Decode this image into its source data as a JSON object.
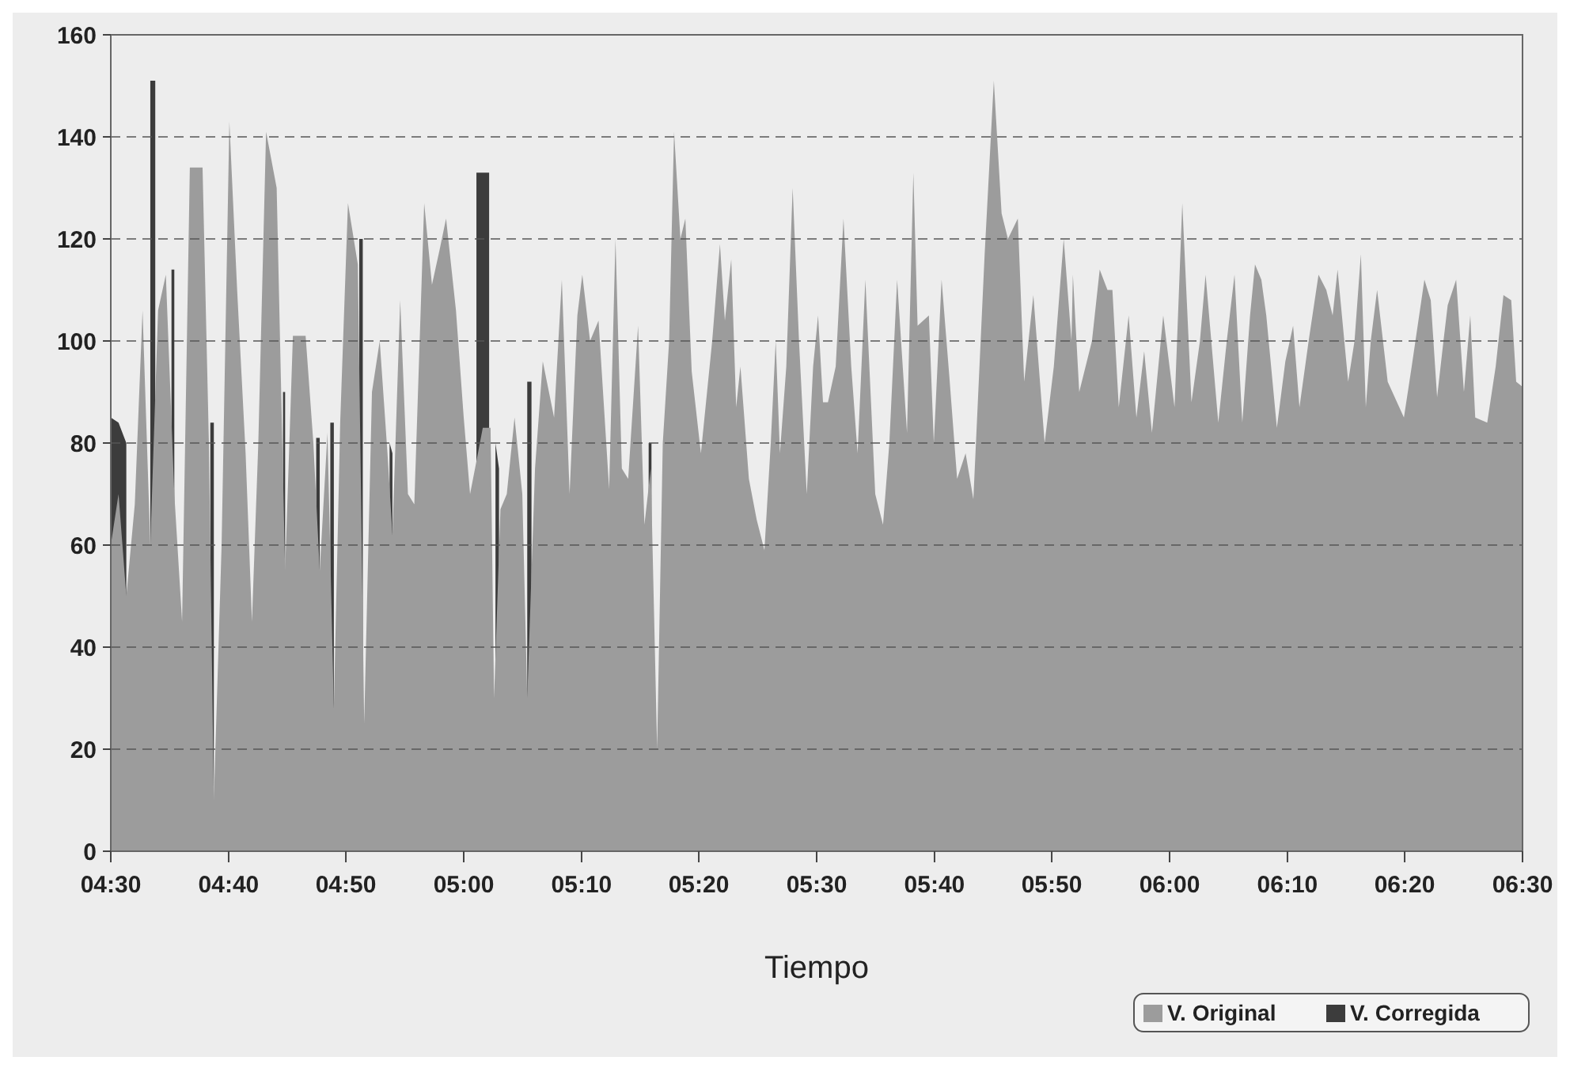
{
  "chart_data": {
    "type": "area",
    "xlabel": "Tiempo",
    "xlim": [
      4.5,
      6.5
    ],
    "ylim": [
      0,
      160
    ],
    "yticks": [
      0,
      20,
      40,
      60,
      80,
      100,
      120,
      140,
      160
    ],
    "xticks": [
      {
        "value": 4.5,
        "label": "04:30"
      },
      {
        "value": 4.667,
        "label": "04:40"
      },
      {
        "value": 4.833,
        "label": "04:50"
      },
      {
        "value": 5,
        "label": "05:00"
      },
      {
        "value": 5.167,
        "label": "05:10"
      },
      {
        "value": 5.333,
        "label": "05:20"
      },
      {
        "value": 5.5,
        "label": "05:30"
      },
      {
        "value": 5.667,
        "label": "05:40"
      },
      {
        "value": 5.833,
        "label": "05:50"
      },
      {
        "value": 6,
        "label": "06:00"
      },
      {
        "value": 6.167,
        "label": "06:10"
      },
      {
        "value": 6.333,
        "label": "06:20"
      },
      {
        "value": 6.5,
        "label": "06:30"
      }
    ],
    "grid": "y",
    "legend": "bottom right",
    "marker": "none",
    "series": [
      {
        "name": "V. Corregida",
        "color": "#3c3c3c",
        "x": [
          4.5,
          4.511,
          4.522,
          4.53,
          4.556,
          4.563,
          4.57,
          4.586,
          4.59,
          4.6,
          4.641,
          4.646,
          4.7,
          4.744,
          4.747,
          4.77,
          4.791,
          4.796,
          4.8,
          4.811,
          4.816,
          4.83,
          4.852,
          4.857,
          4.87,
          4.895,
          4.899,
          4.95,
          5.018,
          5.036,
          5.04,
          5.045,
          5.05,
          5.07,
          5.09,
          5.096,
          5.2,
          5.262,
          5.266
        ],
        "values": [
          85,
          84,
          80,
          null,
          151,
          151,
          null,
          114,
          114,
          null,
          84,
          84,
          null,
          90,
          90,
          null,
          81,
          81,
          null,
          84,
          84,
          null,
          120,
          120,
          null,
          80,
          78,
          null,
          133,
          133,
          null,
          80,
          75,
          null,
          92,
          92,
          null,
          80,
          80
        ]
      },
      {
        "name": "V. Original",
        "color": "#9c9c9c",
        "x": [
          4.5,
          4.511,
          4.522,
          4.534,
          4.545,
          4.556,
          4.567,
          4.578,
          4.59,
          4.601,
          4.612,
          4.63,
          4.639,
          4.646,
          4.657,
          4.668,
          4.679,
          4.691,
          4.7,
          4.709,
          4.72,
          4.735,
          4.747,
          4.758,
          4.776,
          4.787,
          4.796,
          4.807,
          4.816,
          4.825,
          4.836,
          4.85,
          4.859,
          4.87,
          4.881,
          4.892,
          4.899,
          4.91,
          4.921,
          4.93,
          4.944,
          4.955,
          4.966,
          4.975,
          4.989,
          5.0,
          5.009,
          5.016,
          5.027,
          5.038,
          5.043,
          5.052,
          5.061,
          5.072,
          5.083,
          5.09,
          5.101,
          5.112,
          5.128,
          5.139,
          5.15,
          5.161,
          5.168,
          5.179,
          5.191,
          5.206,
          5.215,
          5.224,
          5.233,
          5.247,
          5.256,
          5.265,
          5.274,
          5.282,
          5.291,
          5.298,
          5.307,
          5.314,
          5.323,
          5.336,
          5.352,
          5.363,
          5.37,
          5.379,
          5.386,
          5.392,
          5.404,
          5.415,
          5.426,
          5.435,
          5.442,
          5.448,
          5.457,
          5.466,
          5.475,
          5.486,
          5.495,
          5.502,
          5.509,
          5.516,
          5.527,
          5.538,
          5.549,
          5.558,
          5.569,
          5.583,
          5.594,
          5.603,
          5.614,
          5.628,
          5.637,
          5.643,
          5.659,
          5.666,
          5.677,
          5.688,
          5.699,
          5.711,
          5.722,
          5.738,
          5.751,
          5.762,
          5.771,
          5.785,
          5.794,
          5.807,
          5.823,
          5.836,
          5.85,
          5.861,
          5.863,
          5.872,
          5.89,
          5.901,
          5.912,
          5.919,
          5.928,
          5.942,
          5.953,
          5.964,
          5.975,
          5.991,
          6.007,
          6.018,
          6.031,
          6.043,
          6.051,
          6.069,
          6.081,
          6.092,
          6.103,
          6.114,
          6.121,
          6.13,
          6.137,
          6.152,
          6.164,
          6.175,
          6.184,
          6.197,
          6.211,
          6.222,
          6.231,
          6.238,
          6.253,
          6.262,
          6.271,
          6.278,
          6.285,
          6.294,
          6.309,
          6.332,
          6.343,
          6.361,
          6.37,
          6.379,
          6.388,
          6.394,
          6.406,
          6.417,
          6.426,
          6.433,
          6.45,
          6.462,
          6.473,
          6.484,
          6.491,
          6.5
        ],
        "values": [
          60,
          70,
          50,
          68,
          106,
          60,
          106,
          113,
          70,
          45,
          134,
          134,
          80,
          10,
          60,
          143,
          110,
          78,
          45,
          80,
          141,
          130,
          55,
          101,
          101,
          80,
          55,
          82,
          28,
          84,
          127,
          115,
          25,
          90,
          100,
          78,
          62,
          108,
          70,
          68,
          127,
          111,
          118,
          124,
          106,
          85,
          70,
          75,
          83,
          83,
          30,
          67,
          70,
          85,
          70,
          30,
          75,
          96,
          85,
          112,
          70,
          105,
          113,
          100,
          104,
          71,
          120,
          75,
          73,
          103,
          64,
          75,
          20,
          80,
          100,
          141,
          120,
          124,
          94,
          78,
          100,
          119,
          104,
          116,
          87,
          95,
          73,
          65,
          59,
          80,
          100,
          78,
          95,
          130,
          100,
          70,
          95,
          105,
          88,
          88,
          95,
          124,
          95,
          78,
          112,
          70,
          64,
          80,
          112,
          82,
          133,
          103,
          105,
          80,
          112,
          93,
          73,
          78,
          69,
          117,
          151,
          125,
          120,
          124,
          92,
          109,
          80,
          95,
          120,
          100,
          113,
          90,
          100,
          114,
          110,
          110,
          87,
          105,
          85,
          98,
          82,
          105,
          87,
          127,
          88,
          100,
          113,
          84,
          100,
          113,
          84,
          105,
          115,
          112,
          105,
          83,
          96,
          103,
          87,
          100,
          113,
          110,
          105,
          114,
          92,
          100,
          117,
          87,
          100,
          110,
          92,
          85,
          95,
          112,
          108,
          89,
          100,
          107,
          112,
          90,
          105,
          85,
          84,
          95,
          109,
          108,
          92,
          91
        ]
      }
    ]
  }
}
